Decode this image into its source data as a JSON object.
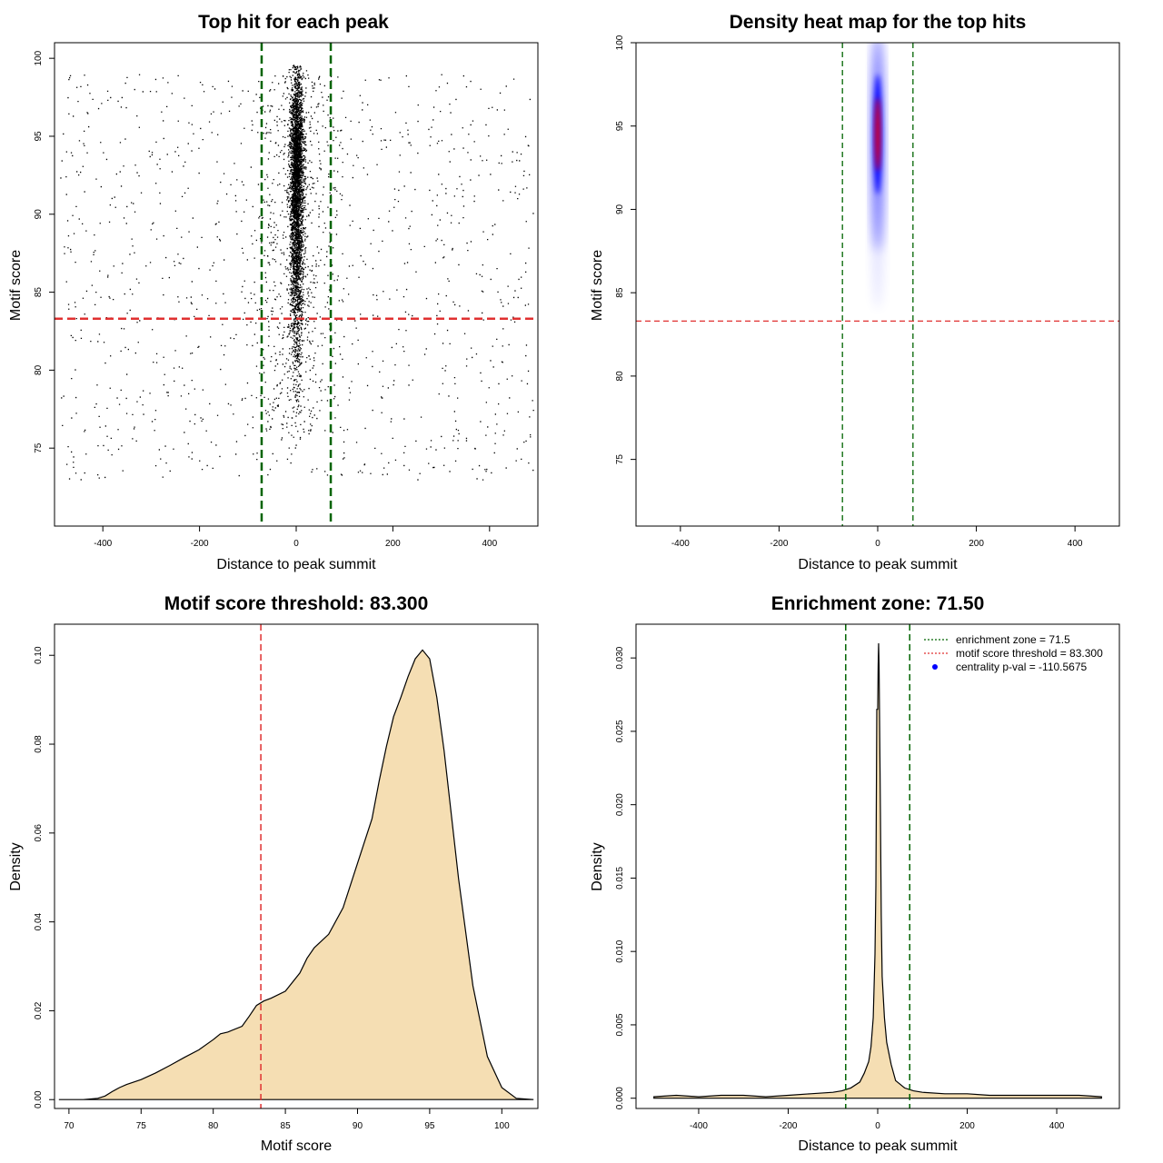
{
  "colors": {
    "zone": "#006400",
    "threshold": "#e03030",
    "fill": "#f5deb3",
    "heat_mid": "#0000ff",
    "heat_hi": "#ff0000"
  },
  "chart_data": [
    {
      "id": "p1",
      "type": "scatter",
      "title": "Top hit for each peak",
      "xlabel": "Distance to peak summit",
      "ylabel": "Motif score",
      "xlim": [
        -500,
        500
      ],
      "ylim": [
        70,
        101
      ],
      "xticks": [
        -400,
        -200,
        0,
        200,
        400
      ],
      "yticks": [
        75,
        80,
        85,
        90,
        95,
        100
      ],
      "vlines": [
        -71.5,
        71.5
      ],
      "hline": 83.3,
      "points_note": "~5000 top-hit points; dense central column within ±20bp of summit scoring 83–100, sparse background uniformly spread over ±500bp scoring 73–99"
    },
    {
      "id": "p2",
      "type": "heatmap",
      "title": "Density heat map for the top hits",
      "xlabel": "Distance to peak summit",
      "ylabel": "Motif score",
      "xlim": [
        -490,
        490
      ],
      "ylim": [
        71,
        100
      ],
      "xticks": [
        -400,
        -200,
        0,
        200,
        400
      ],
      "yticks": [
        75,
        80,
        85,
        90,
        95,
        100
      ],
      "vlines": [
        -71.5,
        71.5
      ],
      "hline": 83.3,
      "hotspot": {
        "x": 0,
        "y": 94.5
      }
    },
    {
      "id": "p3",
      "type": "area",
      "title": "Motif score threshold: 83.300",
      "xlabel": "Motif score",
      "ylabel": "Density",
      "xlim": [
        69,
        102.5
      ],
      "ylim": [
        -0.002,
        0.107
      ],
      "xticks": [
        70,
        75,
        80,
        85,
        90,
        95,
        100
      ],
      "yticks": [
        0.0,
        0.02,
        0.04,
        0.06,
        0.08,
        0.1
      ],
      "yticklabels": [
        "0.00",
        "0.02",
        "0.04",
        "0.06",
        "0.08",
        "0.10"
      ],
      "vline": 83.3,
      "x": [
        69.3,
        71,
        72,
        72.5,
        73,
        73.5,
        74,
        75,
        76,
        77,
        78,
        79,
        80,
        80.5,
        81,
        82,
        82.5,
        83,
        83.5,
        84,
        85,
        86,
        86.5,
        87,
        88,
        89,
        90,
        91,
        91.5,
        92,
        92.5,
        93,
        93.5,
        94,
        94.5,
        95,
        95.5,
        96,
        97,
        98,
        99,
        100,
        101,
        102.2
      ],
      "y": [
        0,
        0,
        0.0003,
        0.0008,
        0.0018,
        0.0027,
        0.0034,
        0.0045,
        0.006,
        0.0077,
        0.0095,
        0.0112,
        0.0135,
        0.0148,
        0.0152,
        0.0165,
        0.0188,
        0.0212,
        0.0222,
        0.0228,
        0.0244,
        0.0285,
        0.0318,
        0.0342,
        0.0372,
        0.0432,
        0.0532,
        0.0632,
        0.0717,
        0.0795,
        0.0862,
        0.0905,
        0.0952,
        0.0992,
        0.1012,
        0.0992,
        0.0905,
        0.0785,
        0.0497,
        0.0256,
        0.0097,
        0.0027,
        0.0003,
        0
      ]
    },
    {
      "id": "p4",
      "type": "area",
      "title": "Enrichment zone: 71.50",
      "xlabel": "Distance to peak summit",
      "ylabel": "Density",
      "xlim": [
        -540,
        540
      ],
      "ylim": [
        -0.0007,
        0.0323
      ],
      "xticks": [
        -400,
        -200,
        0,
        200,
        400
      ],
      "yticks": [
        0.0,
        0.005,
        0.01,
        0.015,
        0.02,
        0.025,
        0.03
      ],
      "yticklabels": [
        "0.000",
        "0.005",
        "0.010",
        "0.015",
        "0.020",
        "0.025",
        "0.030"
      ],
      "vlines": [
        -71.5,
        71.5
      ],
      "x": [
        -500,
        -450,
        -400,
        -350,
        -300,
        -250,
        -200,
        -150,
        -100,
        -80,
        -60,
        -40,
        -30,
        -20,
        -15,
        -10,
        -6,
        -4,
        -2,
        0,
        1,
        2,
        3,
        4,
        6,
        8,
        10,
        15,
        20,
        30,
        40,
        60,
        80,
        100,
        150,
        200,
        250,
        300,
        350,
        400,
        450,
        500
      ],
      "y": [
        0.0001,
        0.0002,
        0.0001,
        0.0002,
        0.0002,
        0.0001,
        0.0002,
        0.0003,
        0.0004,
        0.0005,
        0.0007,
        0.0011,
        0.0017,
        0.0025,
        0.0035,
        0.0055,
        0.0098,
        0.0145,
        0.0265,
        0.0265,
        0.0295,
        0.031,
        0.0295,
        0.0262,
        0.0195,
        0.0125,
        0.0083,
        0.0055,
        0.0038,
        0.0023,
        0.0012,
        0.0007,
        0.0005,
        0.0004,
        0.0003,
        0.0003,
        0.0002,
        0.0002,
        0.0002,
        0.0002,
        0.0002,
        0.0001
      ],
      "legend": [
        {
          "style": "dotted-green",
          "label": "enrichment zone = 71.5"
        },
        {
          "style": "dotted-red",
          "label": "motif score threshold = 83.300"
        },
        {
          "style": "blue-dot",
          "label": "centrality p-val = -110.5675"
        }
      ]
    }
  ]
}
